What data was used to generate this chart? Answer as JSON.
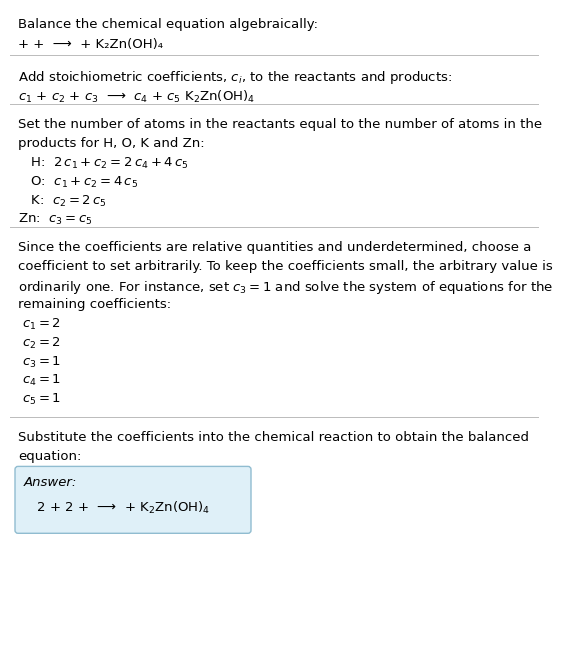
{
  "title": "Balance the chemical equation algebraically:",
  "line1": "+ +  ⟶  + K₂Zn(OH)₄",
  "section2_header": "Add stoichiometric coefficients, $c_i$, to the reactants and products:",
  "section2_eq": "$c_1$ + $c_2$ + $c_3$  ⟶  $c_4$ + $c_5$ K$_2$Zn(OH)$_4$",
  "section3_header1": "Set the number of atoms in the reactants equal to the number of atoms in the",
  "section3_header2": "products for H, O, K and Zn:",
  "section3_H": "  H:  $2\\,c_1 + c_2 = 2\\,c_4 + 4\\,c_5$",
  "section3_O": "  O:  $c_1 + c_2 = 4\\,c_5$",
  "section3_K": "  K:  $c_2 = 2\\,c_5$",
  "section3_Zn": "Zn:  $c_3 = c_5$",
  "section4_line1": "Since the coefficients are relative quantities and underdetermined, choose a",
  "section4_line2": "coefficient to set arbitrarily. To keep the coefficients small, the arbitrary value is",
  "section4_line3": "ordinarily one. For instance, set $c_3 = 1$ and solve the system of equations for the",
  "section4_line4": "remaining coefficients:",
  "section4_c1": "$c_1 = 2$",
  "section4_c2": "$c_2 = 2$",
  "section4_c3": "$c_3 = 1$",
  "section4_c4": "$c_4 = 1$",
  "section4_c5": "$c_5 = 1$",
  "section5_line1": "Substitute the coefficients into the chemical reaction to obtain the balanced",
  "section5_line2": "equation:",
  "answer_label": "Answer:",
  "answer_eq": "   $2$ + $2$ +  ⟶  + K$_2$Zn(OH)$_4$",
  "bg_color": "#ffffff",
  "text_color": "#000000",
  "answer_box_bg": "#dff0f8",
  "answer_box_border": "#90bcd0",
  "divider_color": "#bbbbbb",
  "font_size": 9.5
}
